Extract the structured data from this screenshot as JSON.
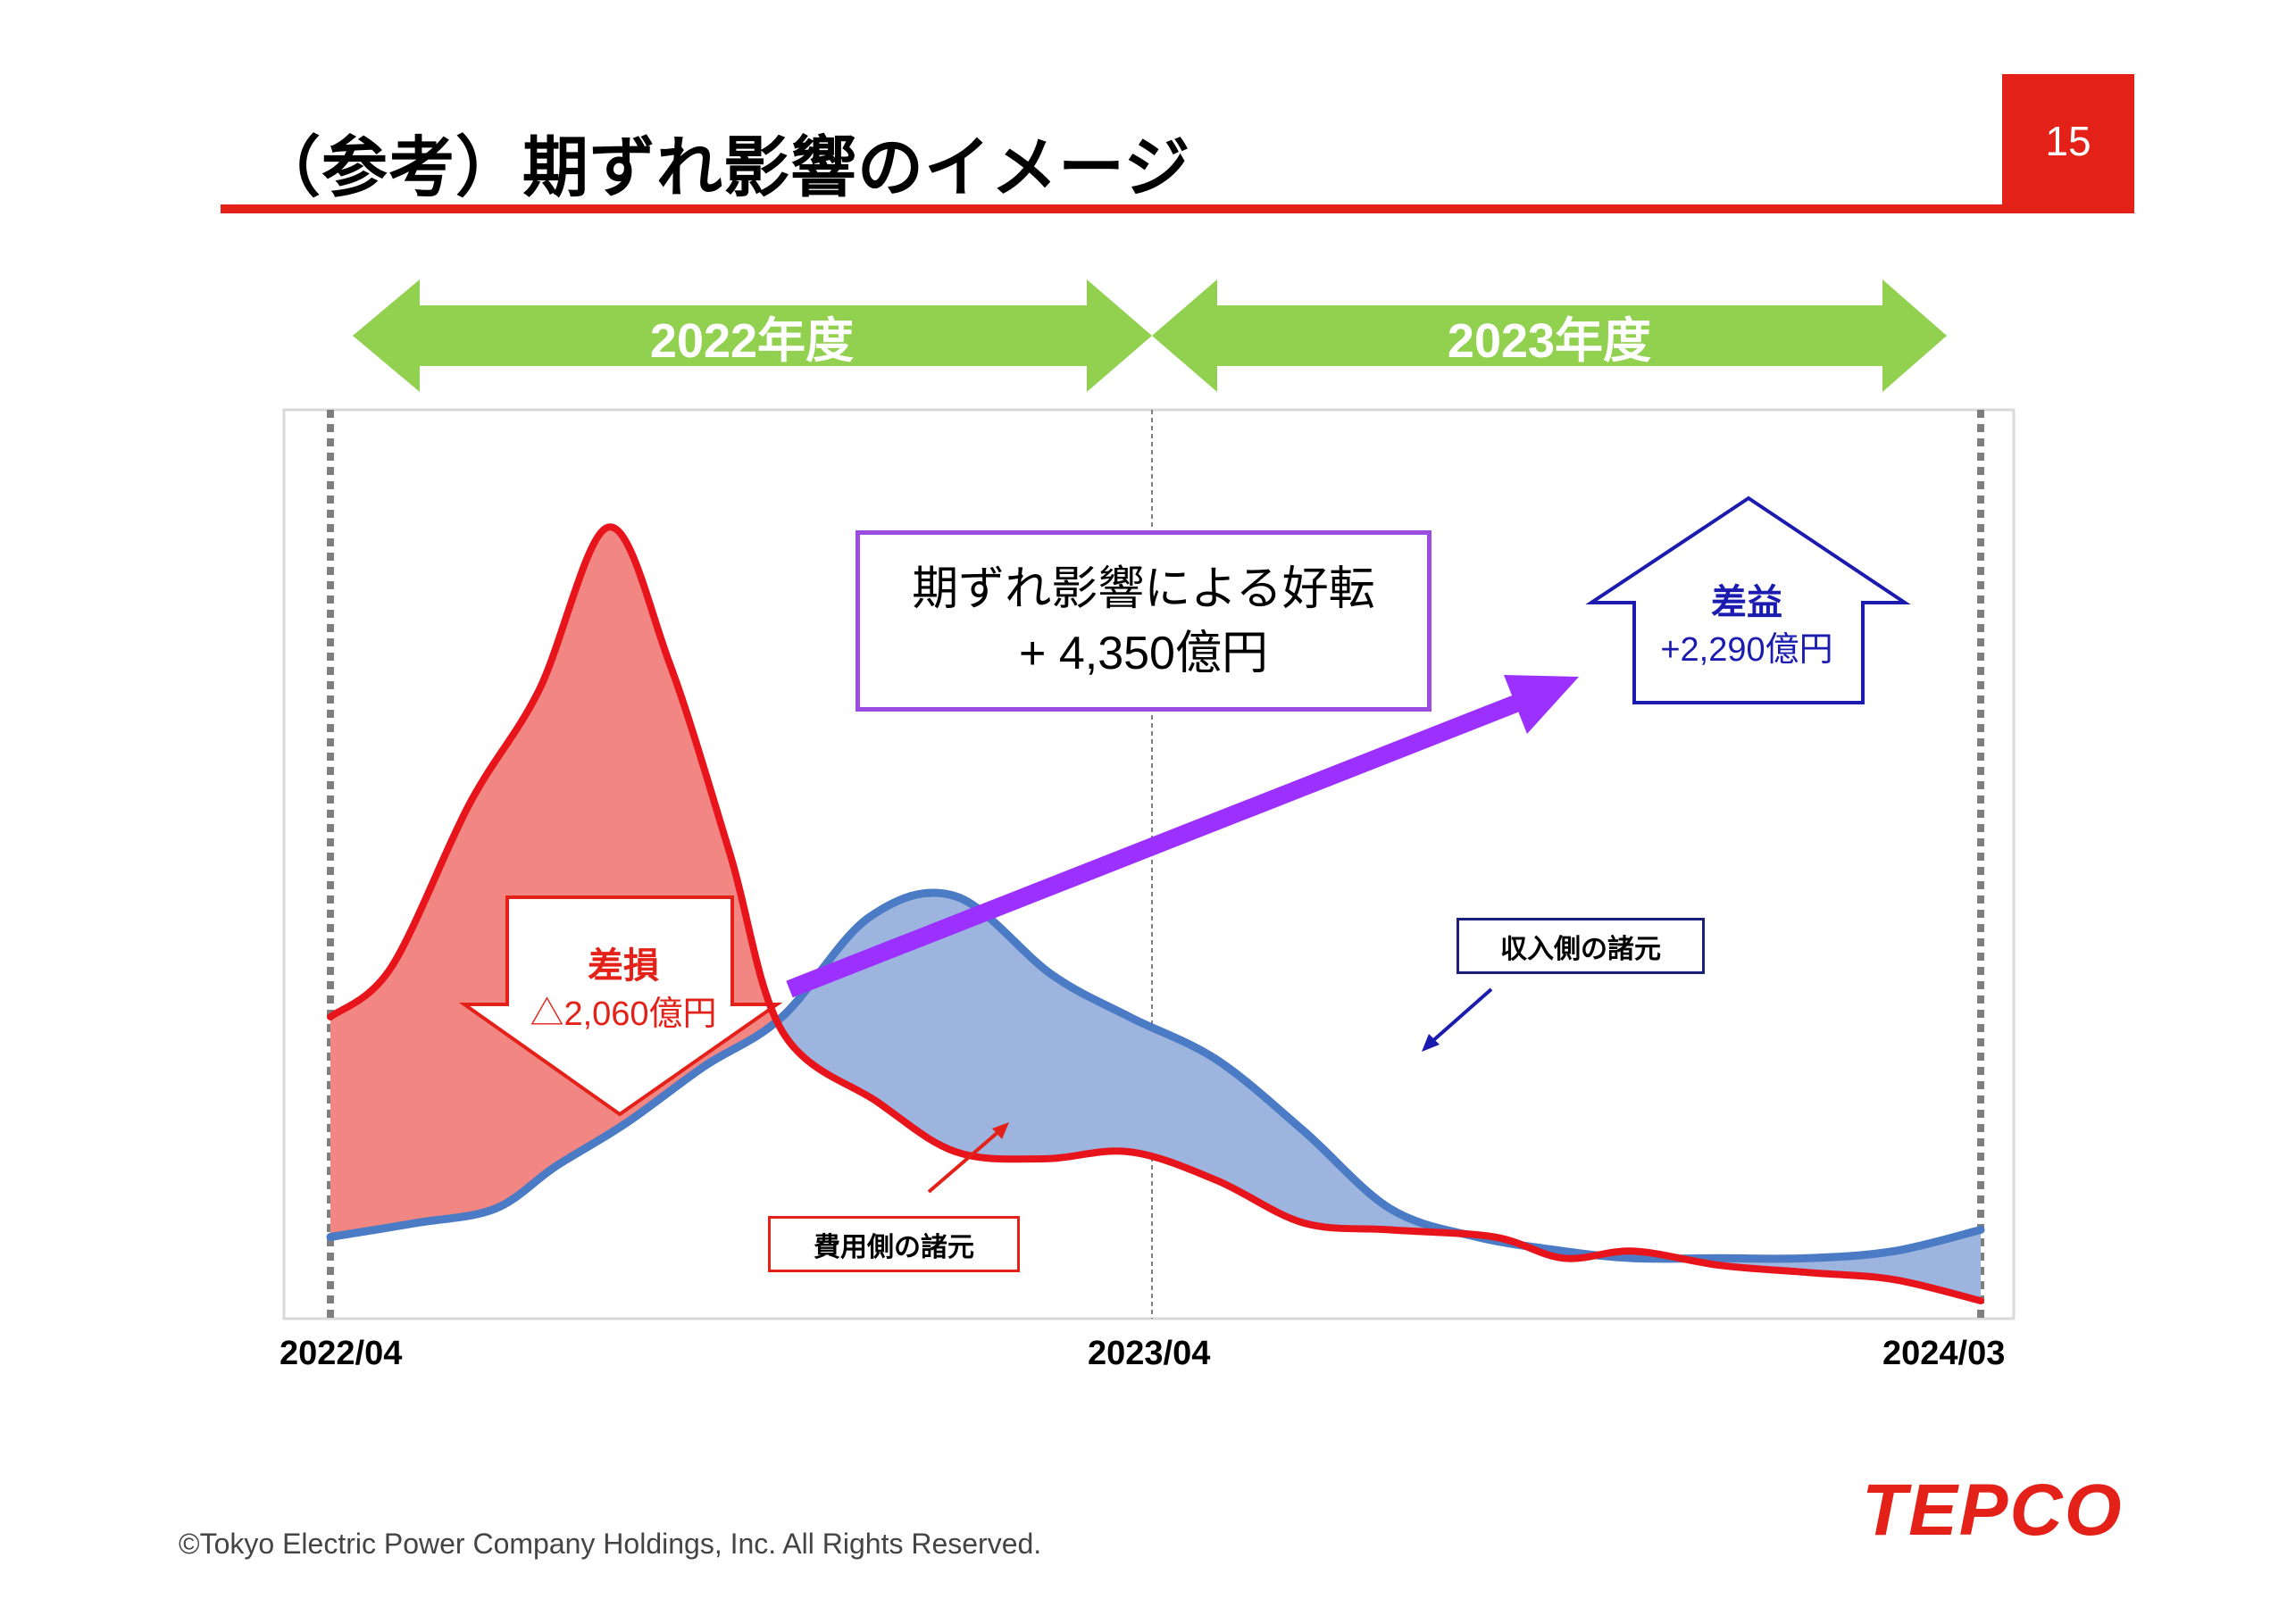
{
  "page": {
    "title": "（参考）期ずれ影響のイメージ",
    "page_number": "15",
    "copyright": "©Tokyo Electric Power Company Holdings, Inc. All Rights Reserved.",
    "logo_text": "TEPCO",
    "accent_color": "#e32119"
  },
  "periods": [
    {
      "label": "2022年度"
    },
    {
      "label": "2023年度"
    }
  ],
  "callouts": {
    "effect_line1": "期ずれ影響による好転",
    "effect_line2": "+ 4,350億円",
    "loss_line1": "差損",
    "loss_line2": "△2,060億円",
    "gain_line1": "差益",
    "gain_line2": "+2,290億円",
    "revenue_label": "収入側の諸元",
    "cost_label": "費用側の諸元"
  },
  "chart_data": {
    "type": "area",
    "x_tick_labels": [
      "2022/04",
      "2023/04",
      "2024/03"
    ],
    "series": [
      {
        "name": "費用側の諸元",
        "color": "#e8141b",
        "values": [
          [
            0,
            40
          ],
          [
            0.7,
            47
          ],
          [
            1.6,
            70
          ],
          [
            2.4,
            86
          ],
          [
            3.2,
            109
          ],
          [
            3.9,
            90
          ],
          [
            4.6,
            63
          ],
          [
            5.2,
            38
          ],
          [
            6.3,
            28
          ],
          [
            7.2,
            21
          ],
          [
            8.2,
            20
          ],
          [
            9.2,
            21
          ],
          [
            10.2,
            17
          ],
          [
            11.2,
            11
          ],
          [
            12.2,
            10
          ],
          [
            13.4,
            9
          ],
          [
            14.2,
            6
          ],
          [
            15.0,
            7
          ],
          [
            16.0,
            5
          ],
          [
            17.0,
            4
          ],
          [
            18.0,
            3
          ],
          [
            19.0,
            0
          ]
        ]
      },
      {
        "name": "収入側の諸元",
        "color": "#4a7bc4",
        "values": [
          [
            0,
            9
          ],
          [
            1.0,
            11
          ],
          [
            1.9,
            13
          ],
          [
            2.6,
            19
          ],
          [
            3.4,
            25
          ],
          [
            4.3,
            33
          ],
          [
            5.2,
            40
          ],
          [
            6.2,
            54
          ],
          [
            7.2,
            57
          ],
          [
            8.3,
            46
          ],
          [
            9.2,
            40
          ],
          [
            10.2,
            34
          ],
          [
            11.2,
            24
          ],
          [
            12.2,
            13
          ],
          [
            13.2,
            9
          ],
          [
            14.2,
            7
          ],
          [
            15.0,
            6
          ],
          [
            16.0,
            6
          ],
          [
            17.0,
            6
          ],
          [
            18.0,
            7
          ],
          [
            19.0,
            10
          ]
        ]
      }
    ],
    "fills": {
      "loss_area_color": "#f28683",
      "gain_area_color": "#9db4de"
    },
    "effect_arrow_color": "#9b30ff",
    "period_arrow_color": "#92d050",
    "gain_box_color": "#1b1bb0",
    "grid": false,
    "legend": "none"
  }
}
